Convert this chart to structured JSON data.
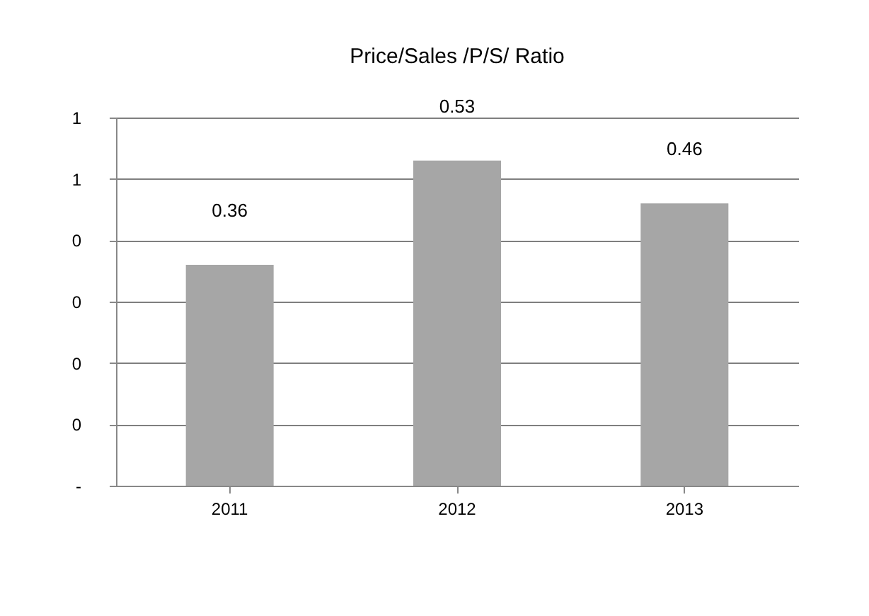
{
  "chart_data": {
    "type": "bar",
    "title": "Price/Sales /P/S/ Ratio",
    "categories": [
      "2011",
      "2012",
      "2013"
    ],
    "values": [
      0.36,
      0.53,
      0.46
    ],
    "color": "#a6a6a6",
    "ylim": [
      0,
      0.6
    ],
    "yticks": [
      {
        "value": 0,
        "label": "-"
      },
      {
        "value": 0.1,
        "label": "0"
      },
      {
        "value": 0.2,
        "label": "0"
      },
      {
        "value": 0.3,
        "label": "0"
      },
      {
        "value": 0.4,
        "label": "0"
      },
      {
        "value": 0.5,
        "label": "1"
      },
      {
        "value": 0.6,
        "label": "1"
      }
    ],
    "grid": "y",
    "data_labels": true
  }
}
